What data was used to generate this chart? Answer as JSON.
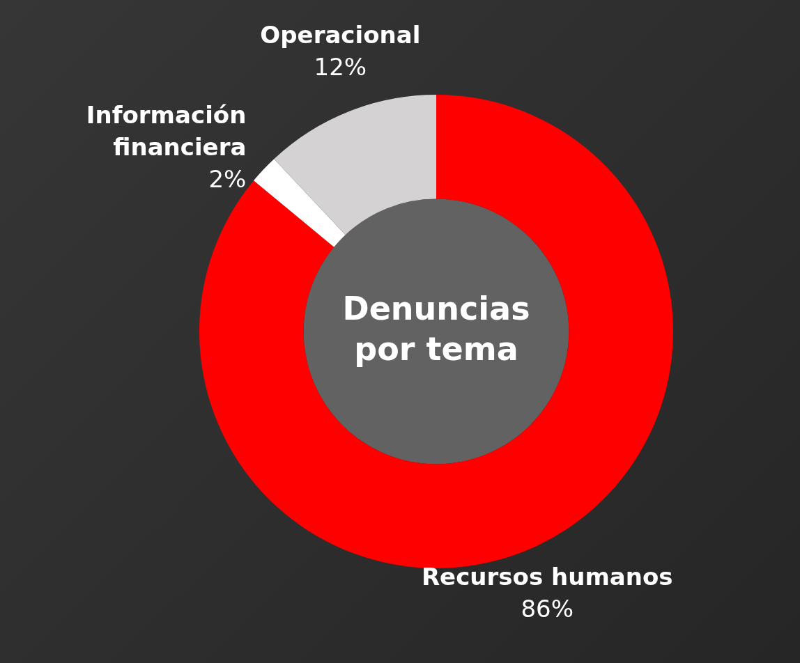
{
  "chart_data": {
    "type": "donut",
    "title": "Denuncias por tema",
    "categories": [
      "Recursos humanos",
      "Información financiera",
      "Operacional"
    ],
    "values": [
      86,
      2,
      12
    ],
    "colors": [
      "#ff0000",
      "#ffffff",
      "#d4d2d3"
    ],
    "value_labels": [
      "86%",
      "2%",
      "12%"
    ],
    "legend": false
  }
}
